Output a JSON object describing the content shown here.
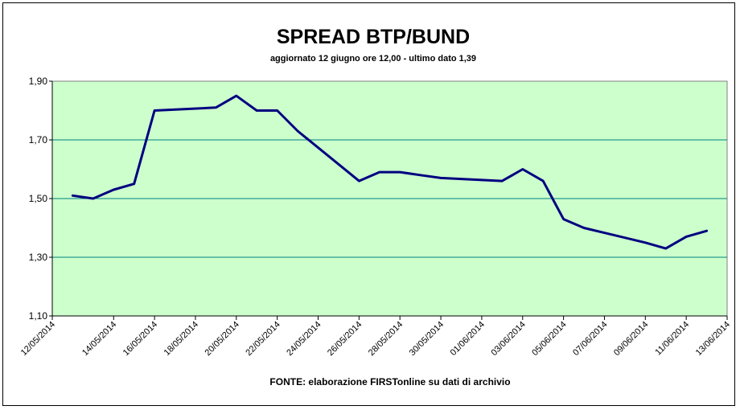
{
  "chart_data": {
    "type": "line",
    "title": "SPREAD BTP/BUND",
    "subtitle": "aggiornato 12 giugno ore 12,00 - ultimo dato 1,39",
    "source": "FONTE: elaborazione FIRSTonline su dati di archivio",
    "xlabel": "",
    "ylabel": "",
    "ylim": [
      1.1,
      1.9
    ],
    "y_ticks": [
      "1,10",
      "1,30",
      "1,50",
      "1,70",
      "1,90"
    ],
    "y_tick_values": [
      1.1,
      1.3,
      1.5,
      1.7,
      1.9
    ],
    "x_tick_labels": [
      "12/05/2014",
      "14/05/2014",
      "16/05/2014",
      "18/05/2014",
      "20/05/2014",
      "22/05/2014",
      "24/05/2014",
      "26/05/2014",
      "28/05/2014",
      "30/05/2014",
      "01/06/2014",
      "03/06/2014",
      "05/06/2014",
      "07/06/2014",
      "09/06/2014",
      "11/06/2014",
      "13/06/2014"
    ],
    "grid": "horizontal",
    "plot_background": "#ccffcc",
    "line_color": "#000080",
    "gridline_color": "#008080",
    "series": [
      {
        "x": [
          "12/05/2014",
          "13/05/2014",
          "14/05/2014",
          "15/05/2014",
          "16/05/2014",
          "19/05/2014",
          "20/05/2014",
          "21/05/2014",
          "22/05/2014",
          "23/05/2014",
          "26/05/2014",
          "27/05/2014",
          "28/05/2014",
          "29/05/2014",
          "30/05/2014",
          "02/06/2014",
          "03/06/2014",
          "04/06/2014",
          "05/06/2014",
          "06/06/2014",
          "09/06/2014",
          "10/06/2014",
          "11/06/2014",
          "12/06/2014"
        ],
        "values": [
          1.51,
          1.5,
          1.53,
          1.55,
          1.8,
          1.81,
          1.85,
          1.8,
          1.8,
          1.73,
          1.56,
          1.59,
          1.59,
          1.58,
          1.57,
          1.56,
          1.6,
          1.56,
          1.43,
          1.4,
          1.35,
          1.33,
          1.37,
          1.39
        ]
      }
    ]
  }
}
